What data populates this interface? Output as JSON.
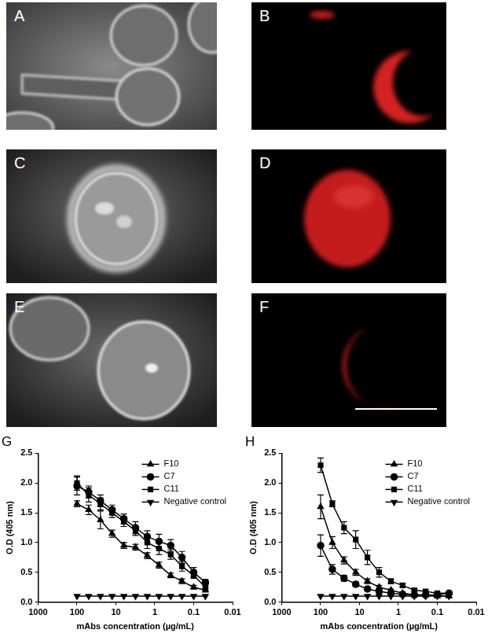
{
  "image_panels": [
    "A",
    "B",
    "C",
    "D",
    "E",
    "F"
  ],
  "chart_data": [
    {
      "type": "line",
      "title": "G",
      "x_label": "mAbs concentration (µg/mL)",
      "y_label": "O.D (405 nm)",
      "x": [
        100,
        50,
        25,
        12.5,
        6.25,
        3.13,
        1.56,
        0.78,
        0.39,
        0.2,
        0.1,
        0.05
      ],
      "series": [
        {
          "name": "F10",
          "color": "#000000",
          "marker": "triangle",
          "values": [
            1.65,
            1.55,
            1.38,
            1.15,
            0.95,
            0.92,
            0.78,
            0.62,
            0.45,
            0.35,
            0.25,
            0.2
          ],
          "errors": [
            0.05,
            0.08,
            0.15,
            0.06,
            0.05,
            0.05,
            0.05,
            0.05,
            0.04,
            0.04,
            0.03,
            0.03
          ]
        },
        {
          "name": "C7",
          "color": "#000000",
          "marker": "circle",
          "values": [
            1.95,
            1.85,
            1.7,
            1.55,
            1.4,
            1.25,
            1.1,
            1.02,
            0.95,
            0.75,
            0.5,
            0.33
          ],
          "errors": [
            0.15,
            0.1,
            0.1,
            0.08,
            0.08,
            0.1,
            0.1,
            0.12,
            0.1,
            0.1,
            0.08,
            0.05
          ]
        },
        {
          "name": "C11",
          "color": "#000000",
          "marker": "square",
          "values": [
            2.0,
            1.8,
            1.65,
            1.5,
            1.35,
            1.2,
            1.0,
            0.9,
            0.8,
            0.6,
            0.45,
            0.25
          ],
          "errors": [
            0.12,
            0.12,
            0.1,
            0.08,
            0.08,
            0.08,
            0.1,
            0.1,
            0.08,
            0.08,
            0.05,
            0.05
          ]
        },
        {
          "name": "Negative control",
          "color": "#000000",
          "marker": "triangle_down",
          "values": [
            0.1,
            0.1,
            0.1,
            0.1,
            0.1,
            0.1,
            0.1,
            0.1,
            0.1,
            0.1,
            0.1,
            0.1
          ],
          "errors": [
            0,
            0,
            0,
            0,
            0,
            0,
            0,
            0,
            0,
            0,
            0,
            0
          ]
        }
      ],
      "log": "x",
      "xlim": [
        1000,
        0.01
      ],
      "xticks": [
        1000,
        100,
        10,
        1,
        0.1,
        0.01
      ],
      "ylim": [
        0,
        2.5
      ],
      "yticks": [
        {
          "value": 0,
          "label": "0.0"
        },
        {
          "value": 0.5,
          "label": "0.5"
        },
        {
          "value": 1,
          "label": "1.0"
        },
        {
          "value": 1.5,
          "label": "1.5"
        },
        {
          "value": 2,
          "label": "2.0"
        },
        {
          "value": 2.5,
          "label": "2.5"
        }
      ],
      "grid": false,
      "legend": "upper right"
    },
    {
      "type": "line",
      "title": "H",
      "x_label": "mAbs concentration (µg/mL)",
      "y_label": "O.D (405 nm)",
      "x": [
        100,
        50,
        25,
        12.5,
        6.25,
        3.13,
        1.56,
        0.78,
        0.39,
        0.2,
        0.1,
        0.05
      ],
      "series": [
        {
          "name": "F10",
          "color": "#000000",
          "marker": "triangle",
          "values": [
            1.6,
            1.0,
            0.7,
            0.5,
            0.35,
            0.25,
            0.2,
            0.15,
            0.12,
            0.12,
            0.1,
            0.1
          ],
          "errors": [
            0.2,
            0.1,
            0.06,
            0.05,
            0.04,
            0.03,
            0.02,
            0.02,
            0.02,
            0.02,
            0.02,
            0.02
          ]
        },
        {
          "name": "C7",
          "color": "#000000",
          "marker": "circle",
          "values": [
            0.95,
            0.55,
            0.4,
            0.3,
            0.22,
            0.18,
            0.15,
            0.13,
            0.12,
            0.12,
            0.12,
            0.15
          ],
          "errors": [
            0.18,
            0.08,
            0.05,
            0.04,
            0.03,
            0.02,
            0.02,
            0.02,
            0.02,
            0.02,
            0.02,
            0.02
          ]
        },
        {
          "name": "C11",
          "color": "#000000",
          "marker": "square",
          "values": [
            2.3,
            1.65,
            1.25,
            1.05,
            0.75,
            0.5,
            0.35,
            0.28,
            0.2,
            0.18,
            0.15,
            0.15
          ],
          "errors": [
            0.12,
            0.05,
            0.1,
            0.15,
            0.12,
            0.08,
            0.04,
            0.03,
            0.02,
            0.02,
            0.02,
            0.02
          ]
        },
        {
          "name": "Negative control",
          "color": "#000000",
          "marker": "triangle_down",
          "values": [
            0.1,
            0.1,
            0.1,
            0.1,
            0.1,
            0.1,
            0.1,
            0.1,
            0.1,
            0.1,
            0.1,
            0.1
          ],
          "errors": [
            0,
            0,
            0,
            0,
            0,
            0,
            0,
            0,
            0,
            0,
            0,
            0
          ]
        }
      ],
      "log": "x",
      "xlim": [
        1000,
        0.01
      ],
      "xticks": [
        1000,
        100,
        10,
        1,
        0.1,
        0.01
      ],
      "ylim": [
        0,
        2.5
      ],
      "yticks": [
        {
          "value": 0,
          "label": "0.0"
        },
        {
          "value": 0.5,
          "label": "0.5"
        },
        {
          "value": 1,
          "label": "1.0"
        },
        {
          "value": 1.5,
          "label": "1.5"
        },
        {
          "value": 2,
          "label": "2.0"
        },
        {
          "value": 2.5,
          "label": "2.5"
        }
      ],
      "grid": false,
      "legend": "upper right"
    }
  ]
}
